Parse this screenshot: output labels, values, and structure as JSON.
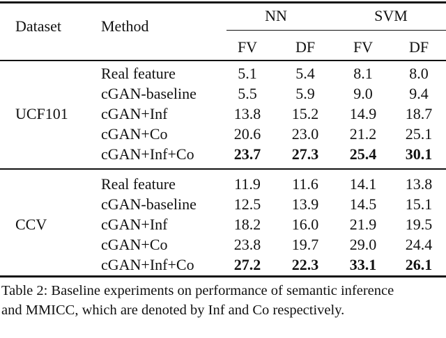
{
  "table": {
    "headers": {
      "dataset": "Dataset",
      "method": "Method",
      "groups": [
        "NN",
        "SVM"
      ],
      "subcolumns": [
        "FV",
        "DF",
        "FV",
        "DF"
      ]
    },
    "sections": [
      {
        "dataset": "UCF101",
        "rows": [
          {
            "method": "Real feature",
            "values": [
              "5.1",
              "5.4",
              "8.1",
              "8.0"
            ],
            "bold": false
          },
          {
            "method": "cGAN-baseline",
            "values": [
              "5.5",
              "5.9",
              "9.0",
              "9.4"
            ],
            "bold": false
          },
          {
            "method": "cGAN+Inf",
            "values": [
              "13.8",
              "15.2",
              "14.9",
              "18.7"
            ],
            "bold": false
          },
          {
            "method": "cGAN+Co",
            "values": [
              "20.6",
              "23.0",
              "21.2",
              "25.1"
            ],
            "bold": false
          },
          {
            "method": "cGAN+Inf+Co",
            "values": [
              "23.7",
              "27.3",
              "25.4",
              "30.1"
            ],
            "bold": true
          }
        ]
      },
      {
        "dataset": "CCV",
        "rows": [
          {
            "method": "Real feature",
            "values": [
              "11.9",
              "11.6",
              "14.1",
              "13.8"
            ],
            "bold": false
          },
          {
            "method": "cGAN-baseline",
            "values": [
              "12.5",
              "13.9",
              "14.5",
              "15.1"
            ],
            "bold": false
          },
          {
            "method": "cGAN+Inf",
            "values": [
              "18.2",
              "16.0",
              "21.9",
              "19.5"
            ],
            "bold": false
          },
          {
            "method": "cGAN+Co",
            "values": [
              "23.8",
              "19.7",
              "29.0",
              "24.4"
            ],
            "bold": false
          },
          {
            "method": "cGAN+Inf+Co",
            "values": [
              "27.2",
              "22.3",
              "33.1",
              "26.1"
            ],
            "bold": true
          }
        ]
      }
    ]
  },
  "caption": {
    "line1": "Table 2: Baseline experiments on performance of semantic inference",
    "line2": "and MMICC, which are denoted by Inf and Co respectively."
  }
}
